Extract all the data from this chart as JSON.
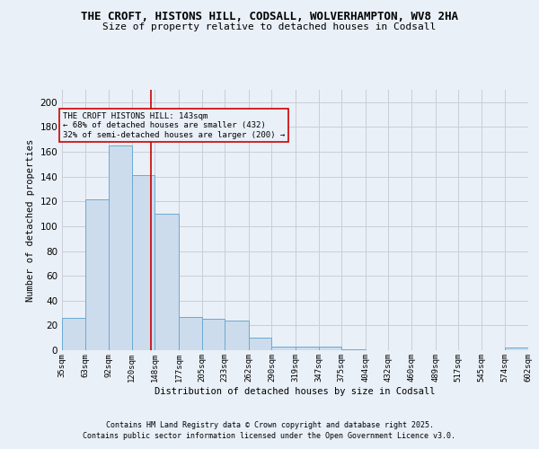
{
  "title1": "THE CROFT, HISTONS HILL, CODSALL, WOLVERHAMPTON, WV8 2HA",
  "title2": "Size of property relative to detached houses in Codsall",
  "xlabel": "Distribution of detached houses by size in Codsall",
  "ylabel": "Number of detached properties",
  "bin_labels": [
    "35sqm",
    "63sqm",
    "92sqm",
    "120sqm",
    "148sqm",
    "177sqm",
    "205sqm",
    "233sqm",
    "262sqm",
    "290sqm",
    "319sqm",
    "347sqm",
    "375sqm",
    "404sqm",
    "432sqm",
    "460sqm",
    "489sqm",
    "517sqm",
    "545sqm",
    "574sqm",
    "602sqm"
  ],
  "bar_heights": [
    26,
    122,
    165,
    141,
    110,
    27,
    25,
    24,
    10,
    3,
    3,
    3,
    1,
    0,
    0,
    0,
    0,
    0,
    0,
    2
  ],
  "bar_color": "#ccdcec",
  "bar_edge_color": "#6aaad4",
  "grid_color": "#c8cdd8",
  "background_color": "#eaf0f8",
  "vline_x": 143,
  "vline_color": "#cc0000",
  "annotation_text": "THE CROFT HISTONS HILL: 143sqm\n← 68% of detached houses are smaller (432)\n32% of semi-detached houses are larger (200) →",
  "annotation_box_facecolor": "#eaf0f8",
  "annotation_box_edgecolor": "#cc0000",
  "ylim": [
    0,
    210
  ],
  "yticks": [
    0,
    20,
    40,
    60,
    80,
    100,
    120,
    140,
    160,
    180,
    200
  ],
  "footer1": "Contains HM Land Registry data © Crown copyright and database right 2025.",
  "footer2": "Contains public sector information licensed under the Open Government Licence v3.0.",
  "bin_edges_sqm": [
    35,
    63,
    92,
    120,
    148,
    177,
    205,
    233,
    262,
    290,
    319,
    347,
    375,
    404,
    432,
    460,
    489,
    517,
    545,
    574,
    602
  ]
}
